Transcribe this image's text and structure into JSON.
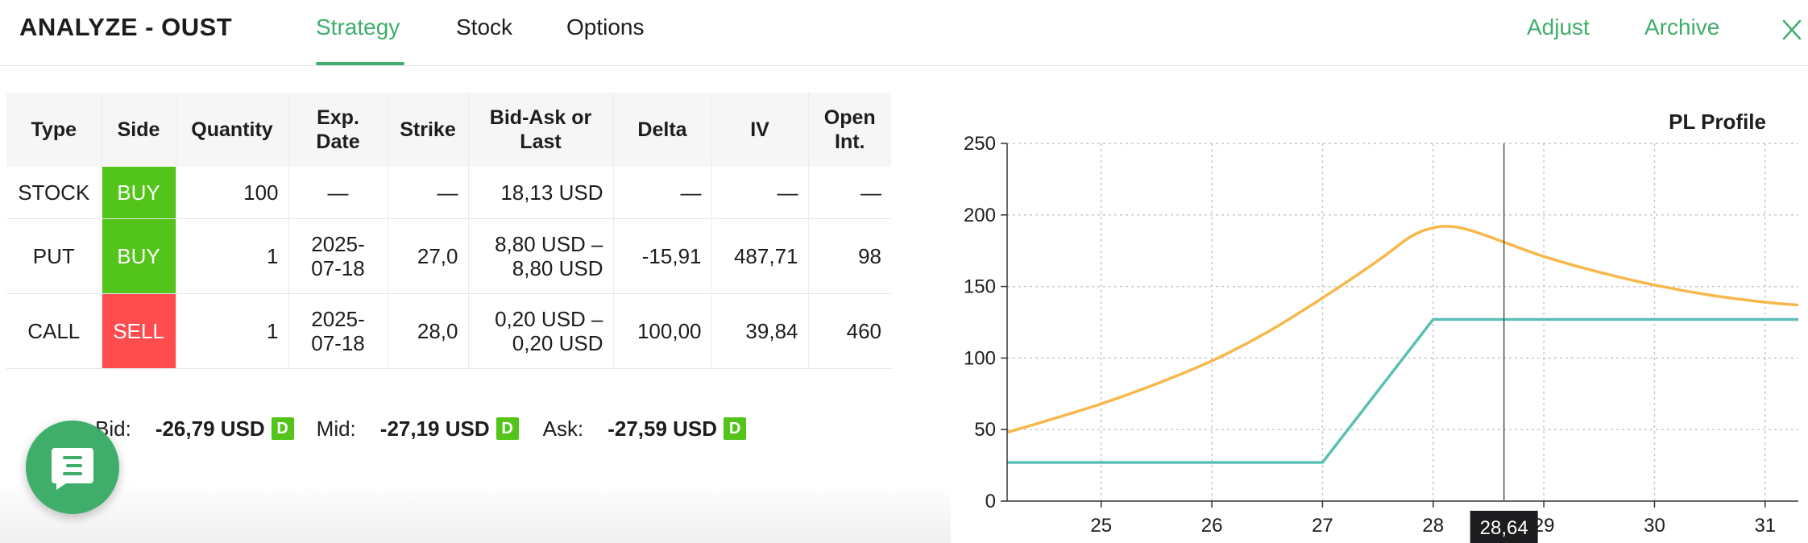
{
  "header": {
    "title": "ANALYZE - OUST",
    "tabs": [
      {
        "label": "Strategy",
        "active": true
      },
      {
        "label": "Stock",
        "active": false
      },
      {
        "label": "Options",
        "active": false
      }
    ],
    "actions": {
      "adjust": "Adjust",
      "archive": "Archive"
    },
    "close_icon": "close-icon",
    "accent_color": "#3fae6a"
  },
  "table": {
    "columns": [
      "Type",
      "Side",
      "Quantity",
      "Exp. Date",
      "Strike",
      "Bid-Ask or Last",
      "Delta",
      "IV",
      "Open Int."
    ],
    "rows": [
      {
        "type": "STOCK",
        "side": "BUY",
        "quantity": "100",
        "exp_date": "—",
        "strike": "—",
        "bid_ask": "18,13 USD",
        "delta": "—",
        "iv": "—",
        "open_int": "—"
      },
      {
        "type": "PUT",
        "side": "BUY",
        "quantity": "1",
        "exp_date": "2025-07-18",
        "strike": "27,0",
        "bid_ask": "8,80 USD – 8,80 USD",
        "delta": "-15,91",
        "iv": "487,71",
        "open_int": "98"
      },
      {
        "type": "CALL",
        "side": "SELL",
        "quantity": "1",
        "exp_date": "2025-07-18",
        "strike": "28,0",
        "bid_ask": "0,20 USD – 0,20 USD",
        "delta": "100,00",
        "iv": "39,84",
        "open_int": "460"
      }
    ],
    "side_colors": {
      "BUY": "#52c41a",
      "SELL": "#ff4d4f"
    }
  },
  "quote": {
    "bid_label": "Bid:",
    "bid_value": "-26,79 USD",
    "mid_label": "Mid:",
    "mid_value": "-27,19 USD",
    "ask_label": "Ask:",
    "ask_value": "-27,59 USD",
    "badge": "D"
  },
  "chat_button": {
    "icon": "chat-icon"
  },
  "chart_data": {
    "type": "line",
    "title": "PL Profile",
    "xlabel": "",
    "ylabel": "",
    "xlim": [
      24.15,
      31.3
    ],
    "ylim": [
      0,
      250
    ],
    "x_ticks": [
      25,
      26,
      27,
      28,
      29,
      30,
      31
    ],
    "y_ticks": [
      0,
      50,
      100,
      150,
      200,
      250
    ],
    "grid": true,
    "cursor": {
      "x": 28.64,
      "label": "28,64"
    },
    "series": [
      {
        "color": "#f7b84b",
        "x": [
          24.15,
          24.5,
          25.0,
          25.5,
          26.0,
          26.5,
          27.0,
          27.5,
          27.8,
          28.0,
          28.15,
          28.3,
          28.5,
          28.64,
          29.0,
          29.5,
          30.0,
          30.5,
          31.0,
          31.3
        ],
        "y": [
          48,
          56,
          68,
          82,
          98,
          118,
          142,
          168,
          185,
          191,
          192,
          190,
          185,
          181,
          171,
          160,
          151,
          144,
          139,
          137
        ]
      },
      {
        "color": "#5bbfb5",
        "x": [
          24.15,
          27.0,
          28.0,
          31.3
        ],
        "y": [
          27,
          27,
          127,
          127
        ]
      }
    ]
  }
}
